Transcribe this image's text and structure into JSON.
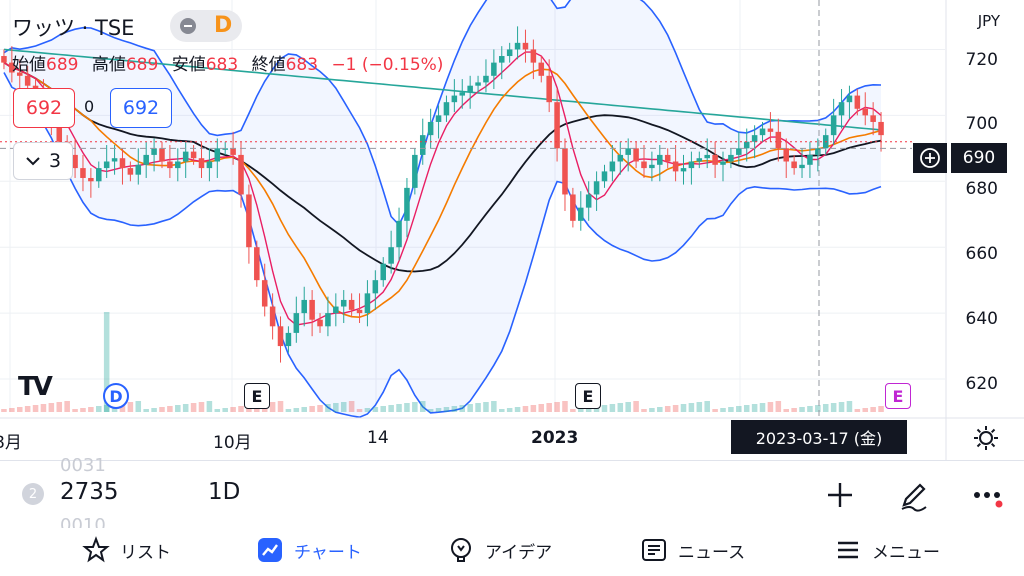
{
  "header": {
    "symbol": "ワッツ · TSE",
    "interval_badge": "D"
  },
  "ohlc": {
    "open_label": "始値",
    "open": "689",
    "high_label": "高値",
    "high": "689",
    "low_label": "安値",
    "low": "683",
    "close_label": "終値",
    "close": "683",
    "change": "−1 (−0.15%)"
  },
  "quote": {
    "bid": "692",
    "spread": "0",
    "ask": "692"
  },
  "indicators": {
    "collapse_count": "3"
  },
  "price_axis": {
    "currency": "JPY",
    "labels": [
      "720",
      "700",
      "680",
      "660",
      "640",
      "620"
    ],
    "current_price": "690"
  },
  "time_axis": {
    "labels": [
      "8月",
      "10月",
      "14",
      "2023"
    ],
    "crosshair_date": "2023-03-17 (金)"
  },
  "events": [
    {
      "type": "D"
    },
    {
      "type": "E"
    },
    {
      "type": "E"
    },
    {
      "type": "E"
    }
  ],
  "logo_text": "TV",
  "toolbar": {
    "ghost_top": "0031",
    "ghost_bottom": "0010",
    "list_number": "2",
    "symbol_code": "2735",
    "interval": "1D"
  },
  "tabs": [
    {
      "label": "リスト"
    },
    {
      "label": "チャート"
    },
    {
      "label": "アイデア"
    },
    {
      "label": "ニュース"
    },
    {
      "label": "メニュー"
    }
  ],
  "colors": {
    "up": "#26a69a",
    "down": "#ef5350",
    "accent": "#2962ff",
    "bb": "#2962ff",
    "ma_fast": "#e91e63",
    "ma_mid": "#f57c00",
    "ma_slow": "#131722",
    "ma_long": "#26a69a"
  },
  "chart_data": {
    "type": "candlestick",
    "ylim": [
      610,
      735
    ],
    "yticks": [
      620,
      640,
      660,
      680,
      700,
      720
    ],
    "closes": [
      716,
      713,
      712,
      709,
      706,
      702,
      698,
      692,
      688,
      684,
      681,
      680,
      684,
      686,
      687,
      684,
      682,
      685,
      688,
      690,
      686,
      684,
      686,
      689,
      687,
      684,
      686,
      690,
      690,
      688,
      676,
      660,
      650,
      642,
      636,
      630,
      634,
      640,
      644,
      638,
      636,
      640,
      642,
      644,
      641,
      640,
      646,
      650,
      655,
      660,
      668,
      678,
      688,
      694,
      698,
      700,
      704,
      706,
      707,
      709,
      710,
      712,
      716,
      718,
      720,
      722,
      720,
      716,
      712,
      704,
      690,
      676,
      668,
      672,
      676,
      680,
      683,
      686,
      688,
      690,
      686,
      684,
      685,
      688,
      686,
      683,
      684,
      686,
      687,
      688,
      685,
      686,
      688,
      690,
      692,
      694,
      696,
      695,
      690,
      686,
      684,
      685,
      688,
      690,
      694,
      700,
      704,
      706,
      702,
      700,
      698,
      694
    ]
  }
}
